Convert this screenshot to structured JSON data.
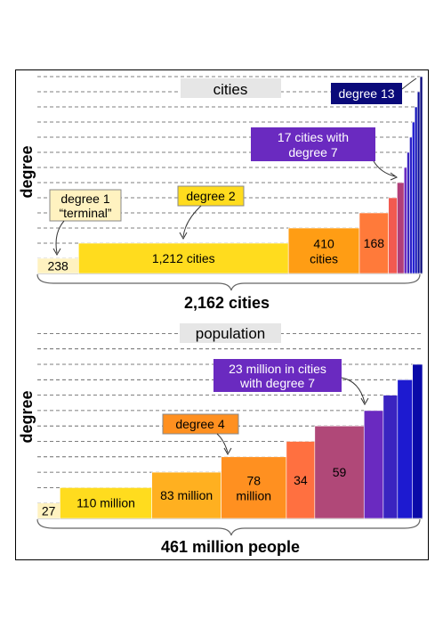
{
  "chart_data": [
    {
      "type": "bar",
      "subtype": "stepped-variable-width",
      "label_text": "cities",
      "ylabel": "degree",
      "total_label": "2,162 cities",
      "grid": "dashed horizontal",
      "degrees": [
        1,
        2,
        3,
        4,
        5,
        6,
        7,
        8,
        9,
        10,
        11,
        12,
        13
      ],
      "widths": [
        238,
        1212,
        410,
        168,
        50,
        40,
        17,
        10,
        6,
        4,
        3,
        2,
        2
      ],
      "colors": [
        "#fff2c0",
        "#ffdc1e",
        "#ff9d14",
        "#ff7a3a",
        "#f25a50",
        "#b03e78",
        "#6a2ac0",
        "#3a24c0",
        "#2a20c8",
        "#1d1ad0",
        "#1010b8",
        "#0a0a98",
        "#070778"
      ],
      "bar_labels": [
        {
          "degree": 1,
          "text": "238"
        },
        {
          "degree": 2,
          "text": "1,212 cities"
        },
        {
          "degree": 3,
          "lines": [
            "410",
            "cities"
          ]
        },
        {
          "degree": 4,
          "text": "168"
        }
      ],
      "annotations": [
        {
          "lines": [
            "degree 1",
            "“terminal”"
          ],
          "bg": "#fff2c0",
          "fg": "#000000",
          "border": "#888888"
        },
        {
          "lines": [
            "degree 2"
          ],
          "bg": "#ffdc1e",
          "fg": "#000000",
          "border": "#888888"
        },
        {
          "lines": [
            "17 cities with",
            "degree 7"
          ],
          "bg": "#6a2ac0",
          "fg": "#ffffff",
          "border": "#6a2ac0"
        },
        {
          "lines": [
            "degree 13"
          ],
          "bg": "#0a0a7a",
          "fg": "#ffffff",
          "border": "#0a0a7a"
        }
      ]
    },
    {
      "type": "bar",
      "subtype": "stepped-variable-width",
      "label_text": "population",
      "ylabel": "degree",
      "total_label": "461 million people",
      "grid": "dashed horizontal",
      "degrees": [
        1,
        2,
        3,
        4,
        5,
        6,
        7,
        8,
        9,
        10,
        11,
        12,
        13
      ],
      "widths": [
        27,
        110,
        83,
        78,
        34,
        59,
        23,
        17,
        18,
        12,
        0,
        0,
        0
      ],
      "colors": [
        "#fff2c0",
        "#ffdc1e",
        "#ffb020",
        "#ff9020",
        "#ff7040",
        "#b04878",
        "#6a2ac0",
        "#3a24c0",
        "#1d1ad0",
        "#0a0aa8",
        "#0a0aa8",
        "#0a0aa8",
        "#0a0aa8"
      ],
      "bar_labels": [
        {
          "degree": 1,
          "text": "27"
        },
        {
          "degree": 2,
          "text": "110 million"
        },
        {
          "degree": 3,
          "text": "83 million"
        },
        {
          "degree": 4,
          "lines": [
            "78",
            "million"
          ]
        },
        {
          "degree": 5,
          "text": "34"
        },
        {
          "degree": 6,
          "text": "59"
        }
      ],
      "annotations": [
        {
          "lines": [
            "degree 4"
          ],
          "bg": "#ff9020",
          "fg": "#000000",
          "border": "#888888"
        },
        {
          "lines": [
            "23 million in cities",
            "with degree 7"
          ],
          "bg": "#6a2ac0",
          "fg": "#ffffff",
          "border": "#6a2ac0"
        }
      ]
    }
  ]
}
